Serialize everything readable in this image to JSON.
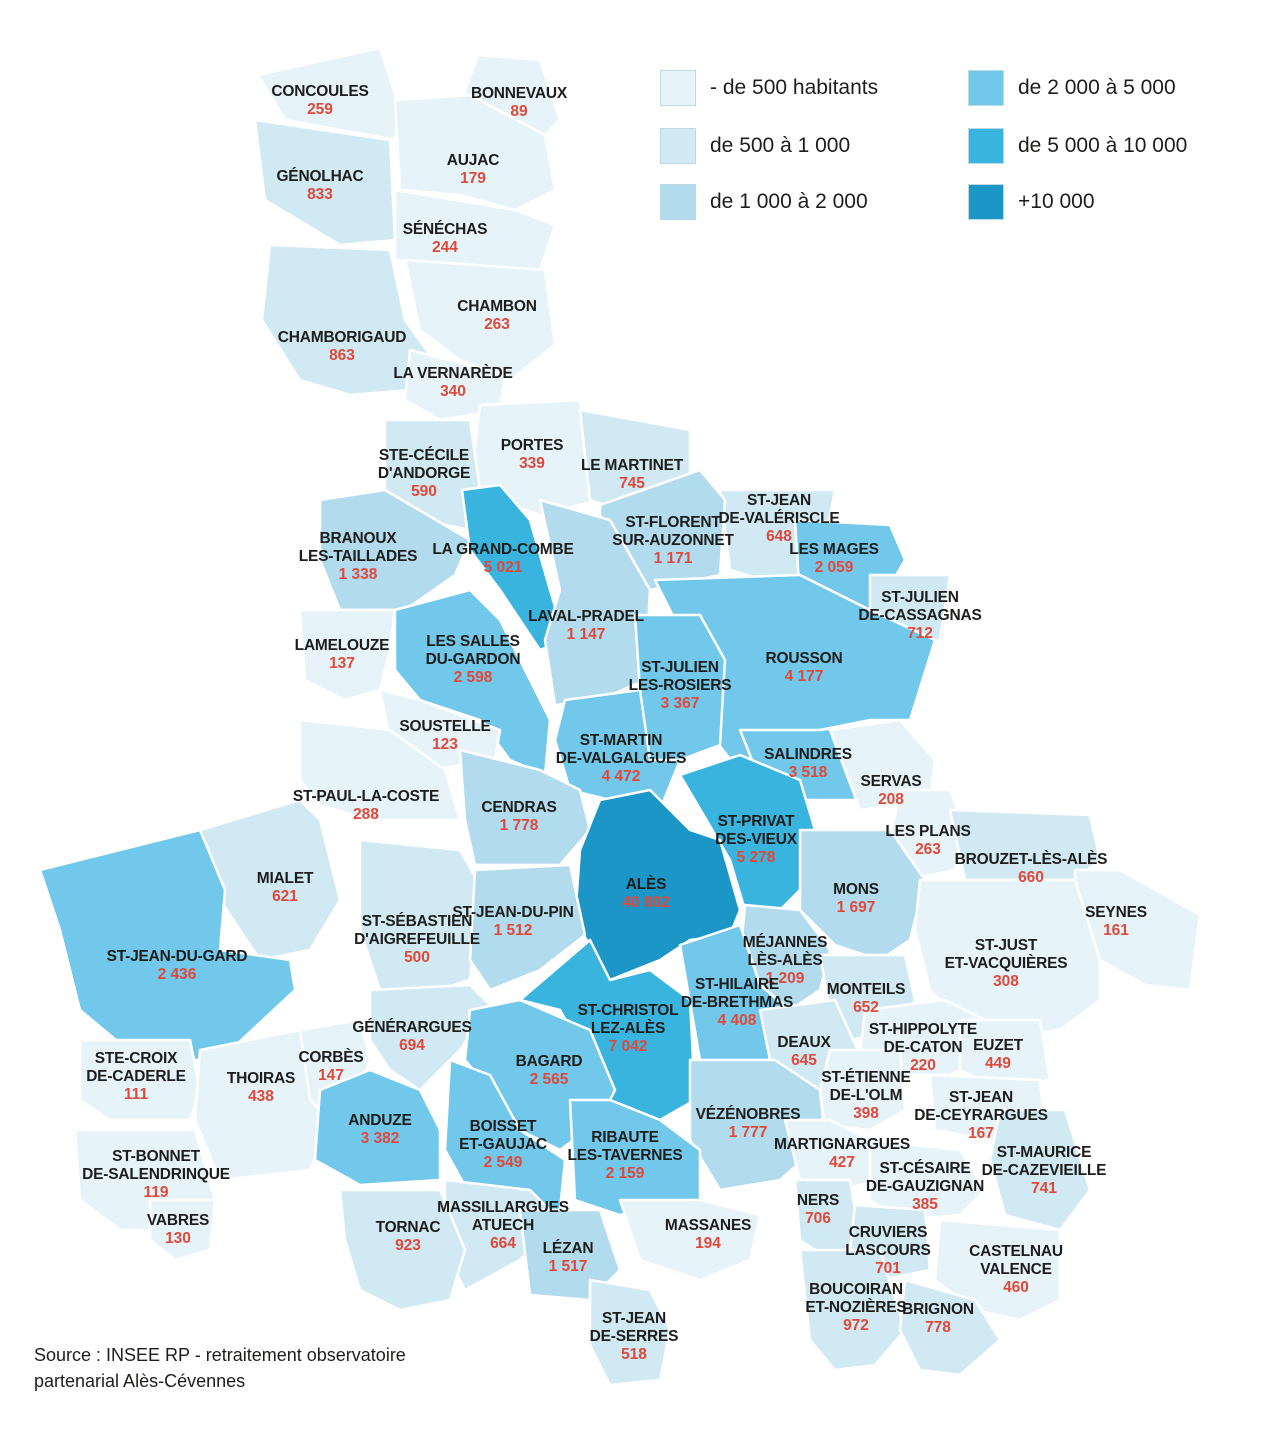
{
  "legend": [
    {
      "label": "- de 500 habitants",
      "color": "#e6f4fa"
    },
    {
      "label": "de 500 à 1 000",
      "color": "#d0e9f3"
    },
    {
      "label": "de 1 000 à 2 000",
      "color": "#b2dbee"
    },
    {
      "label": "de 2 000 à 5 000",
      "color": "#72c8ea"
    },
    {
      "label": "de 5 000 à 10 000",
      "color": "#38b4df"
    },
    {
      "label": "+10 000",
      "color": "#1b96c6"
    }
  ],
  "source": {
    "line1": "Source : INSEE RP - retraitement observatoire",
    "line2": "partenarial Alès-Cévennes"
  },
  "communes": [
    {
      "name": [
        "CONCOULES"
      ],
      "pop": "259",
      "cls": 0
    },
    {
      "name": [
        "BONNEVAUX"
      ],
      "pop": "89",
      "cls": 0
    },
    {
      "name": [
        "AUJAC"
      ],
      "pop": "179",
      "cls": 0
    },
    {
      "name": [
        "GÉNOLHAC"
      ],
      "pop": "833",
      "cls": 1
    },
    {
      "name": [
        "SÉNÉCHAS"
      ],
      "pop": "244",
      "cls": 0
    },
    {
      "name": [
        "CHAMBON"
      ],
      "pop": "263",
      "cls": 0
    },
    {
      "name": [
        "CHAMBORIGAUD"
      ],
      "pop": "863",
      "cls": 1
    },
    {
      "name": [
        "LA VERNARÈDE"
      ],
      "pop": "340",
      "cls": 0
    },
    {
      "name": [
        "PORTES"
      ],
      "pop": "339",
      "cls": 0
    },
    {
      "name": [
        "STE-CÉCILE",
        "D'ANDORGE"
      ],
      "pop": "590",
      "cls": 1
    },
    {
      "name": [
        "LE MARTINET"
      ],
      "pop": "745",
      "cls": 1
    },
    {
      "name": [
        "ST-JEAN",
        "DE-VALÉRISCLE"
      ],
      "pop": "648",
      "cls": 1
    },
    {
      "name": [
        "BRANOUX",
        "LES-TAILLADES"
      ],
      "pop": "1 338",
      "cls": 2
    },
    {
      "name": [
        "LA GRAND-COMBE"
      ],
      "pop": "5 021",
      "cls": 4
    },
    {
      "name": [
        "ST-FLORENT",
        "SUR-AUZONNET"
      ],
      "pop": "1 171",
      "cls": 2
    },
    {
      "name": [
        "LES MAGES"
      ],
      "pop": "2 059",
      "cls": 3
    },
    {
      "name": [
        "ST-JULIEN",
        "DE-CASSAGNAS"
      ],
      "pop": "712",
      "cls": 1
    },
    {
      "name": [
        "LAVAL-PRADEL"
      ],
      "pop": "1 147",
      "cls": 2
    },
    {
      "name": [
        "LAMELOUZE"
      ],
      "pop": "137",
      "cls": 0
    },
    {
      "name": [
        "LES SALLES",
        "DU-GARDON"
      ],
      "pop": "2 598",
      "cls": 3
    },
    {
      "name": [
        "ROUSSON"
      ],
      "pop": "4 177",
      "cls": 3
    },
    {
      "name": [
        "ST-JULIEN",
        "LES-ROSIERS"
      ],
      "pop": "3 367",
      "cls": 3
    },
    {
      "name": [
        "SOUSTELLE"
      ],
      "pop": "123",
      "cls": 0
    },
    {
      "name": [
        "ST-MARTIN",
        "DE-VALGALGUES"
      ],
      "pop": "4 472",
      "cls": 3
    },
    {
      "name": [
        "SALINDRES"
      ],
      "pop": "3 518",
      "cls": 3
    },
    {
      "name": [
        "SERVAS"
      ],
      "pop": "208",
      "cls": 0
    },
    {
      "name": [
        "ST-PAUL-LA-COSTE"
      ],
      "pop": "288",
      "cls": 0
    },
    {
      "name": [
        "CENDRAS"
      ],
      "pop": "1 778",
      "cls": 2
    },
    {
      "name": [
        "ST-PRIVAT",
        "DES-VIEUX"
      ],
      "pop": "5 278",
      "cls": 4
    },
    {
      "name": [
        "LES PLANS"
      ],
      "pop": "263",
      "cls": 0
    },
    {
      "name": [
        "BROUZET-LÈS-ALÈS"
      ],
      "pop": "660",
      "cls": 1
    },
    {
      "name": [
        "MIALET"
      ],
      "pop": "621",
      "cls": 1
    },
    {
      "name": [
        "ALÈS"
      ],
      "pop": "40 802",
      "cls": 5
    },
    {
      "name": [
        "MONS"
      ],
      "pop": "1 697",
      "cls": 2
    },
    {
      "name": [
        "SEYNES"
      ],
      "pop": "161",
      "cls": 0
    },
    {
      "name": [
        "ST-SÉBASTIEN",
        "D'AIGREFEUILLE"
      ],
      "pop": "500",
      "cls": 1
    },
    {
      "name": [
        "ST-JEAN-DU-PIN"
      ],
      "pop": "1 512",
      "cls": 2
    },
    {
      "name": [
        "ST-JEAN-DU-GARD"
      ],
      "pop": "2 436",
      "cls": 3
    },
    {
      "name": [
        "MÉJANNES",
        "LÈS-ALÈS"
      ],
      "pop": "1 209",
      "cls": 2
    },
    {
      "name": [
        "ST-JUST",
        "ET-VACQUIÈRES"
      ],
      "pop": "308",
      "cls": 0
    },
    {
      "name": [
        "ST-HILAIRE",
        "DE-BRETHMAS"
      ],
      "pop": "4 408",
      "cls": 3
    },
    {
      "name": [
        "MONTEILS"
      ],
      "pop": "652",
      "cls": 1
    },
    {
      "name": [
        "ST-CHRISTOL",
        "LEZ-ALÈS"
      ],
      "pop": "7 042",
      "cls": 4
    },
    {
      "name": [
        "GÉNÉRARGUES"
      ],
      "pop": "694",
      "cls": 1
    },
    {
      "name": [
        "ST-HIPPOLYTE",
        "DE-CATON"
      ],
      "pop": "220",
      "cls": 0
    },
    {
      "name": [
        "EUZET"
      ],
      "pop": "449",
      "cls": 0
    },
    {
      "name": [
        "DEAUX"
      ],
      "pop": "645",
      "cls": 1
    },
    {
      "name": [
        "CORBÈS"
      ],
      "pop": "147",
      "cls": 0
    },
    {
      "name": [
        "BAGARD"
      ],
      "pop": "2 565",
      "cls": 3
    },
    {
      "name": [
        "STE-CROIX",
        "DE-CADERLE"
      ],
      "pop": "111",
      "cls": 0
    },
    {
      "name": [
        "THOIRAS"
      ],
      "pop": "438",
      "cls": 0
    },
    {
      "name": [
        "ST-ÉTIENNE",
        "DE-L'OLM"
      ],
      "pop": "398",
      "cls": 0
    },
    {
      "name": [
        "ST-JEAN",
        "DE-CEYRARGUES"
      ],
      "pop": "167",
      "cls": 0
    },
    {
      "name": [
        "VÉZÉNOBRES"
      ],
      "pop": "1 777",
      "cls": 2
    },
    {
      "name": [
        "ANDUZE"
      ],
      "pop": "3 382",
      "cls": 3
    },
    {
      "name": [
        "BOISSET",
        "ET-GAUJAC"
      ],
      "pop": "2 549",
      "cls": 3
    },
    {
      "name": [
        "RIBAUTE",
        "LES-TAVERNES"
      ],
      "pop": "2 159",
      "cls": 3
    },
    {
      "name": [
        "MARTIGNARGUES"
      ],
      "pop": "427",
      "cls": 0
    },
    {
      "name": [
        "ST-MAURICE",
        "DE-CAZEVIEILLE"
      ],
      "pop": "741",
      "cls": 1
    },
    {
      "name": [
        "ST-BONNET",
        "DE-SALENDRINQUE"
      ],
      "pop": "119",
      "cls": 0
    },
    {
      "name": [
        "ST-CÉSAIRE",
        "DE-GAUZIGNAN"
      ],
      "pop": "385",
      "cls": 0
    },
    {
      "name": [
        "MASSILLARGUES",
        "ATUECH"
      ],
      "pop": "664",
      "cls": 1
    },
    {
      "name": [
        "VABRES"
      ],
      "pop": "130",
      "cls": 0
    },
    {
      "name": [
        "NERS"
      ],
      "pop": "706",
      "cls": 1
    },
    {
      "name": [
        "TORNAC"
      ],
      "pop": "923",
      "cls": 1
    },
    {
      "name": [
        "MASSANES"
      ],
      "pop": "194",
      "cls": 0
    },
    {
      "name": [
        "CRUVIERS",
        "LASCOURS"
      ],
      "pop": "701",
      "cls": 1
    },
    {
      "name": [
        "LÉZAN"
      ],
      "pop": "1 517",
      "cls": 2
    },
    {
      "name": [
        "CASTELNAU",
        "VALENCE"
      ],
      "pop": "460",
      "cls": 0
    },
    {
      "name": [
        "BOUCOIRAN",
        "ET-NOZIÈRES"
      ],
      "pop": "972",
      "cls": 1
    },
    {
      "name": [
        "BRIGNON"
      ],
      "pop": "778",
      "cls": 1
    },
    {
      "name": [
        "ST-JEAN",
        "DE-SERRES"
      ],
      "pop": "518",
      "cls": 1
    }
  ]
}
